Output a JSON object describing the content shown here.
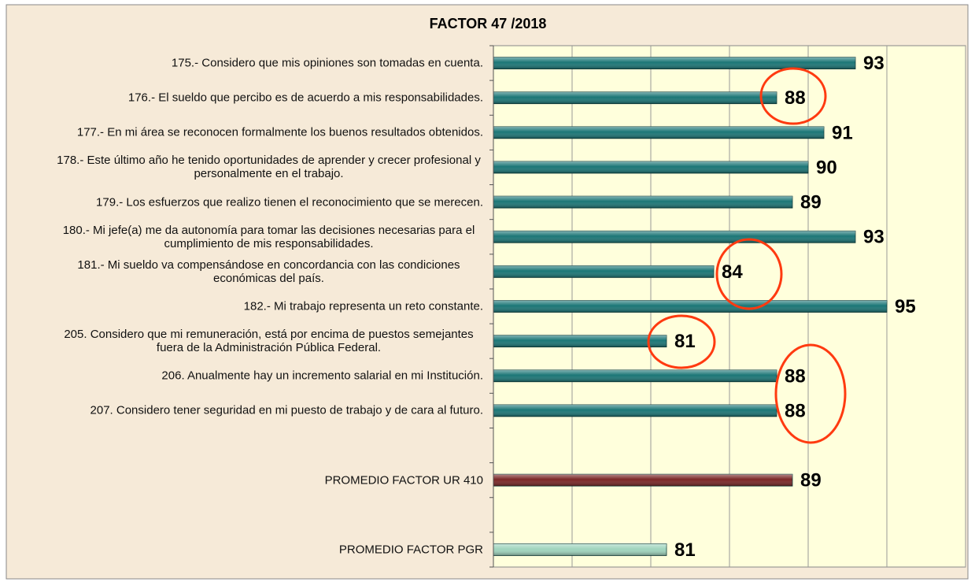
{
  "chart_data": {
    "type": "hbar",
    "title": "FACTOR 47 /2018",
    "categories": [
      "175.- Considero que mis opiniones son tomadas en cuenta.",
      "176.- El sueldo que percibo es de acuerdo a mis responsabilidades.",
      "177.- En mi área se reconocen formalmente los buenos resultados obtenidos.",
      "178.- Este último año he tenido oportunidades de aprender y crecer profesional y personalmente en el trabajo.",
      "179.- Los esfuerzos que realizo tienen el reconocimiento que se merecen.",
      "180.- Mi jefe(a) me da autonomía para tomar las decisiones necesarias para el cumplimiento de mis responsabilidades.",
      "181.- Mi sueldo va compensándose en concordancia con las condiciones económicas del país.",
      "182.- Mi trabajo representa un reto constante.",
      "205. Considero que mi remuneración, está por encima de puestos semejantes fuera de la Administración Pública Federal.",
      "206. Anualmente hay un incremento salarial en mi Institución.",
      "207. Considero tener seguridad en mi puesto de trabajo y de cara al futuro.",
      null,
      "PROMEDIO FACTOR UR 410",
      null,
      "PROMEDIO FACTOR PGR"
    ],
    "values": [
      93,
      88,
      91,
      90,
      89,
      93,
      84,
      95,
      81,
      88,
      88,
      null,
      89,
      null,
      81
    ],
    "colors": [
      "#1b7676",
      "#1b7676",
      "#1b7676",
      "#1b7676",
      "#1b7676",
      "#1b7676",
      "#1b7676",
      "#1b7676",
      "#1b7676",
      "#1b7676",
      "#1b7676",
      null,
      "#7a2626",
      null,
      "#9fd4bd"
    ],
    "xlim": [
      70,
      100
    ],
    "xticks": [
      70,
      75,
      80,
      85,
      90,
      95,
      100
    ],
    "grid": true
  }
}
